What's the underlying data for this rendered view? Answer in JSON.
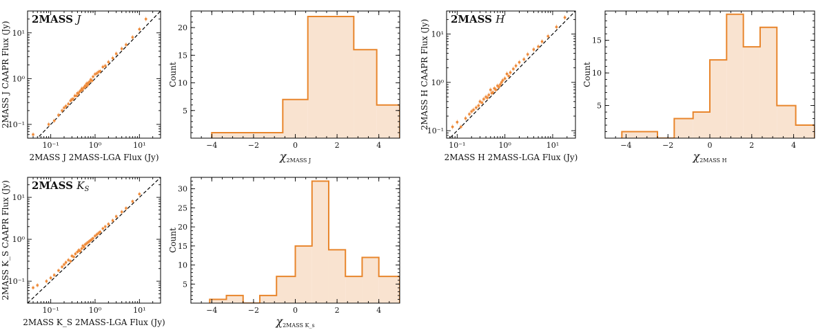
{
  "chart_data": [
    {
      "type": "scatter",
      "panel_title_bold": "2MASS",
      "panel_title_italic": "J",
      "xlabel": "2MASS J 2MASS-LGA Flux (Jy)",
      "ylabel": "2MASS J CAAPR Flux (Jy)",
      "xscale": "log",
      "yscale": "log",
      "xlim": [
        0.03,
        30
      ],
      "ylim": [
        0.05,
        30
      ],
      "x_ticks": [
        {
          "v": 0.1,
          "label": "10⁻¹"
        },
        {
          "v": 1,
          "label": "10⁰"
        },
        {
          "v": 10,
          "label": "10¹"
        }
      ],
      "y_ticks": [
        {
          "v": 0.1,
          "label": "10⁻¹"
        },
        {
          "v": 1,
          "label": "10⁰"
        },
        {
          "v": 10,
          "label": "10¹"
        }
      ],
      "line": "one-to-one dashed",
      "x": [
        0.04,
        0.09,
        0.12,
        0.15,
        0.18,
        0.2,
        0.22,
        0.25,
        0.28,
        0.3,
        0.32,
        0.35,
        0.38,
        0.4,
        0.42,
        0.45,
        0.48,
        0.5,
        0.52,
        0.55,
        0.58,
        0.6,
        0.62,
        0.65,
        0.68,
        0.7,
        0.75,
        0.8,
        0.85,
        0.9,
        1.0,
        1.1,
        1.2,
        1.3,
        1.5,
        1.7,
        2.0,
        2.5,
        3.0,
        4.0,
        5.0,
        7.0,
        10.0,
        14.0
      ],
      "y": [
        0.06,
        0.1,
        0.12,
        0.16,
        0.2,
        0.23,
        0.25,
        0.28,
        0.33,
        0.35,
        0.36,
        0.42,
        0.42,
        0.48,
        0.47,
        0.52,
        0.55,
        0.6,
        0.57,
        0.63,
        0.65,
        0.7,
        0.68,
        0.78,
        0.72,
        0.8,
        0.85,
        0.95,
        0.9,
        1.1,
        1.25,
        1.3,
        1.4,
        1.45,
        1.8,
        1.9,
        2.3,
        2.8,
        3.5,
        4.5,
        5.5,
        8.0,
        12.0,
        20.0
      ]
    },
    {
      "type": "bar",
      "histogram": true,
      "xlabel_symbol": "χ",
      "xlabel_sub": "2MASS J",
      "ylabel": "Count",
      "xlim": [
        -5,
        5
      ],
      "ylim": [
        0,
        23
      ],
      "x_ticks": [
        -4,
        -2,
        0,
        2,
        4
      ],
      "y_ticks": [
        5,
        10,
        15,
        20
      ],
      "bin_edges": [
        -4.0,
        -0.6,
        0.6,
        2.8,
        3.9,
        5.0
      ],
      "values": [
        1,
        7,
        22,
        16,
        6
      ]
    },
    {
      "type": "scatter",
      "panel_title_bold": "2MASS",
      "panel_title_italic": "H",
      "xlabel": "2MASS H 2MASS-LGA Flux (Jy)",
      "ylabel": "2MASS H CAAPR Flux (Jy)",
      "xscale": "log",
      "yscale": "log",
      "xlim": [
        0.06,
        30
      ],
      "ylim": [
        0.07,
        30
      ],
      "x_ticks": [
        {
          "v": 0.1,
          "label": "10⁻¹"
        },
        {
          "v": 1,
          "label": "10⁰"
        },
        {
          "v": 10,
          "label": "10¹"
        }
      ],
      "y_ticks": [
        {
          "v": 0.1,
          "label": "10⁻¹"
        },
        {
          "v": 1,
          "label": "10⁰"
        },
        {
          "v": 10,
          "label": "10¹"
        }
      ],
      "line": "one-to-one dashed",
      "x": [
        0.08,
        0.1,
        0.12,
        0.15,
        0.18,
        0.2,
        0.22,
        0.25,
        0.28,
        0.3,
        0.33,
        0.36,
        0.4,
        0.43,
        0.46,
        0.5,
        0.53,
        0.56,
        0.6,
        0.65,
        0.7,
        0.75,
        0.8,
        0.85,
        0.9,
        1.0,
        1.1,
        1.2,
        1.3,
        1.5,
        1.7,
        2.0,
        2.5,
        3.0,
        4.0,
        5.0,
        6.0,
        8.0,
        12.0,
        18.0
      ],
      "y": [
        0.12,
        0.15,
        0.12,
        0.18,
        0.22,
        0.25,
        0.27,
        0.3,
        0.33,
        0.4,
        0.38,
        0.45,
        0.5,
        0.48,
        0.55,
        0.7,
        0.6,
        0.62,
        0.75,
        0.7,
        0.85,
        0.8,
        0.9,
        1.0,
        1.1,
        1.2,
        1.5,
        1.35,
        1.6,
        1.9,
        2.2,
        2.6,
        3.0,
        3.8,
        4.8,
        5.5,
        7.0,
        9.0,
        14.0,
        22.0
      ]
    },
    {
      "type": "bar",
      "histogram": true,
      "xlabel_symbol": "χ",
      "xlabel_sub": "2MASS H",
      "ylabel": "Count",
      "xlim": [
        -5,
        5
      ],
      "ylim": [
        0,
        19.5
      ],
      "x_ticks": [
        -4,
        -2,
        0,
        2,
        4
      ],
      "y_ticks": [
        5,
        10,
        15
      ],
      "bin_edges": [
        -4.2,
        -2.5,
        -1.7,
        -0.8,
        0.0,
        0.8,
        1.6,
        2.4,
        3.2,
        4.1,
        5.0
      ],
      "values": [
        1,
        0,
        3,
        4,
        12,
        19,
        14,
        17,
        5,
        2
      ]
    },
    {
      "type": "scatter",
      "panel_title_bold": "2MASS",
      "panel_title_italic": "K",
      "panel_title_sub": "S",
      "xlabel": "2MASS K_S 2MASS-LGA Flux (Jy)",
      "ylabel": "2MASS K_S CAAPR Flux (Jy)",
      "xscale": "log",
      "yscale": "log",
      "xlim": [
        0.03,
        30
      ],
      "ylim": [
        0.03,
        30
      ],
      "x_ticks": [
        {
          "v": 0.1,
          "label": "10⁻¹"
        },
        {
          "v": 1,
          "label": "10⁰"
        },
        {
          "v": 10,
          "label": "10¹"
        }
      ],
      "y_ticks": [
        {
          "v": 0.1,
          "label": "10⁻¹"
        },
        {
          "v": 1,
          "label": "10⁰"
        },
        {
          "v": 10,
          "label": "10¹"
        }
      ],
      "line": "one-to-one dashed",
      "x": [
        0.04,
        0.05,
        0.08,
        0.1,
        0.12,
        0.15,
        0.18,
        0.2,
        0.22,
        0.25,
        0.28,
        0.3,
        0.33,
        0.36,
        0.4,
        0.43,
        0.46,
        0.5,
        0.53,
        0.56,
        0.6,
        0.65,
        0.7,
        0.75,
        0.8,
        0.85,
        0.9,
        1.0,
        1.1,
        1.2,
        1.3,
        1.5,
        1.7,
        2.0,
        2.5,
        3.0,
        4.0,
        5.0,
        7.0,
        10.0
      ],
      "y": [
        0.07,
        0.08,
        0.1,
        0.12,
        0.14,
        0.18,
        0.22,
        0.25,
        0.28,
        0.32,
        0.3,
        0.4,
        0.38,
        0.45,
        0.5,
        0.55,
        0.52,
        0.6,
        0.7,
        0.65,
        0.75,
        0.8,
        0.85,
        0.9,
        0.95,
        1.0,
        1.05,
        1.2,
        1.3,
        1.4,
        1.5,
        1.8,
        2.0,
        2.3,
        2.8,
        3.5,
        4.5,
        5.5,
        8.0,
        12.0
      ]
    },
    {
      "type": "bar",
      "histogram": true,
      "xlabel_symbol": "χ",
      "xlabel_sub": "2MASS K_s",
      "ylabel": "Count",
      "xlim": [
        -5,
        5
      ],
      "ylim": [
        0,
        33
      ],
      "x_ticks": [
        -4,
        -2,
        0,
        2,
        4
      ],
      "y_ticks": [
        5,
        10,
        15,
        20,
        25,
        30
      ],
      "bin_edges": [
        -4.1,
        -3.3,
        -2.5,
        -1.7,
        -0.9,
        0.0,
        0.8,
        1.6,
        2.4,
        3.2,
        4.0,
        5.0
      ],
      "values": [
        1,
        2,
        0,
        2,
        7,
        15,
        32,
        14,
        7,
        12,
        7
      ]
    }
  ]
}
